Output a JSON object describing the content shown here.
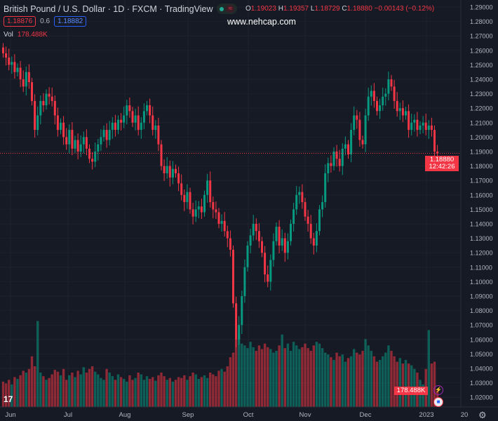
{
  "header": {
    "title": "British Pound / U.S. Dollar · 1D · FXCM · TradingView",
    "ohlc": {
      "o_label": "O",
      "o": "1.19023",
      "h_label": "H",
      "h": "1.19357",
      "l_label": "L",
      "l": "1.18729",
      "c_label": "C",
      "c": "1.18880",
      "change": "−0.00143 (−0.12%)"
    },
    "bid": "1.18876",
    "spread": "0.6",
    "ask": "1.18882",
    "watermark": "www.nehcap.com",
    "vol_label": "Vol",
    "vol_value": "178.488K"
  },
  "price_axis": {
    "labels": [
      "1.29000",
      "1.28000",
      "1.27000",
      "1.26000",
      "1.25000",
      "1.24000",
      "1.23000",
      "1.22000",
      "1.21000",
      "1.20000",
      "1.19000",
      "1.18000",
      "1.17000",
      "1.16000",
      "1.15000",
      "1.14000",
      "1.13000",
      "1.12000",
      "1.11000",
      "1.10000",
      "1.09000",
      "1.08000",
      "1.07000",
      "1.06000",
      "1.05000",
      "1.04000",
      "1.03000",
      "1.02000"
    ],
    "last_price": "1.18880",
    "countdown": "12:42:26",
    "last_volume": "178.488K"
  },
  "time_axis": {
    "labels": [
      "Jun",
      "Jul",
      "Aug",
      "Sep",
      "Oct",
      "Nov",
      "Dec",
      "2023",
      "20"
    ]
  },
  "colors": {
    "up": "#089981",
    "down": "#f23645",
    "bg": "#161a25",
    "grid": "#1e222d"
  },
  "chart_data": {
    "type": "candlestick",
    "title": "British Pound / U.S. Dollar · 1D · FXCM",
    "ylim": [
      1.015,
      1.295
    ],
    "first_open": 1.262,
    "close": [
      1.258,
      1.255,
      1.25,
      1.252,
      1.245,
      1.248,
      1.24,
      1.235,
      1.245,
      1.238,
      1.225,
      1.205,
      1.215,
      1.225,
      1.222,
      1.23,
      1.228,
      1.225,
      1.215,
      1.205,
      1.21,
      1.2,
      1.195,
      1.205,
      1.192,
      1.198,
      1.19,
      1.195,
      1.2,
      1.192,
      1.185,
      1.183,
      1.19,
      1.195,
      1.2,
      1.205,
      1.198,
      1.205,
      1.21,
      1.205,
      1.212,
      1.21,
      1.215,
      1.222,
      1.218,
      1.21,
      1.215,
      1.205,
      1.21,
      1.218,
      1.222,
      1.215,
      1.205,
      1.208,
      1.195,
      1.18,
      1.175,
      1.18,
      1.172,
      1.178,
      1.175,
      1.168,
      1.16,
      1.155,
      1.162,
      1.15,
      1.145,
      1.15,
      1.152,
      1.148,
      1.16,
      1.17,
      1.155,
      1.15,
      1.148,
      1.14,
      1.142,
      1.135,
      1.13,
      1.122,
      1.085,
      1.06,
      1.07,
      1.09,
      1.11,
      1.125,
      1.132,
      1.14,
      1.135,
      1.128,
      1.12,
      1.105,
      1.1,
      1.115,
      1.128,
      1.138,
      1.125,
      1.13,
      1.12,
      1.128,
      1.14,
      1.15,
      1.16,
      1.162,
      1.155,
      1.145,
      1.14,
      1.13,
      1.125,
      1.135,
      1.15,
      1.155,
      1.175,
      1.182,
      1.18,
      1.19,
      1.185,
      1.18,
      1.192,
      1.195,
      1.188,
      1.205,
      1.215,
      1.212,
      1.198,
      1.195,
      1.215,
      1.228,
      1.232,
      1.225,
      1.218,
      1.222,
      1.228,
      1.23,
      1.24,
      1.235,
      1.225,
      1.218,
      1.22,
      1.215,
      1.218,
      1.205,
      1.21,
      1.212,
      1.205,
      1.208,
      1.21,
      1.205,
      1.208,
      1.205,
      1.19,
      1.1888
    ],
    "volume_k": [
      280,
      260,
      300,
      250,
      330,
      310,
      350,
      400,
      380,
      420,
      560,
      450,
      950,
      380,
      340,
      300,
      320,
      360,
      410,
      390,
      350,
      420,
      300,
      350,
      380,
      330,
      400,
      360,
      440,
      380,
      420,
      450,
      390,
      360,
      320,
      300,
      420,
      380,
      340,
      300,
      360,
      330,
      310,
      280,
      350,
      300,
      320,
      380,
      360,
      300,
      340,
      310,
      330,
      290,
      350,
      380,
      340,
      300,
      320,
      280,
      300,
      330,
      320,
      350,
      300,
      340,
      380,
      360,
      310,
      330,
      350,
      320,
      380,
      360,
      340,
      400,
      420,
      390,
      450,
      550,
      600,
      750,
      800,
      700,
      680,
      650,
      720,
      660,
      620,
      680,
      640,
      700,
      660,
      640,
      600,
      620,
      680,
      800,
      650,
      700,
      620,
      720,
      680,
      640,
      660,
      700,
      650,
      620,
      680,
      720,
      700,
      650,
      600,
      580,
      550,
      520,
      600,
      560,
      580,
      500,
      540,
      560,
      640,
      600,
      580,
      620,
      750,
      680,
      620,
      560,
      500,
      520,
      560,
      600,
      680,
      620,
      560,
      500,
      540,
      480,
      520,
      480,
      460,
      420,
      380,
      300,
      250,
      420,
      850,
      480,
      500,
      178.488
    ]
  }
}
